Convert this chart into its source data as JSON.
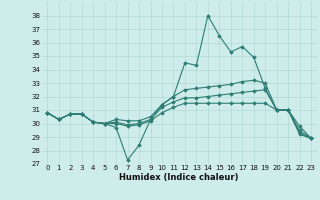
{
  "xlabel": "Humidex (Indice chaleur)",
  "background_color": "#ceecea",
  "grid_color": "#b2d8d4",
  "line_color": "#2d7d74",
  "xlim": [
    -0.5,
    23.5
  ],
  "ylim": [
    27,
    39
  ],
  "yticks": [
    27,
    28,
    29,
    30,
    31,
    32,
    33,
    34,
    35,
    36,
    37,
    38
  ],
  "xticks": [
    0,
    1,
    2,
    3,
    4,
    5,
    6,
    7,
    8,
    9,
    10,
    11,
    12,
    13,
    14,
    15,
    16,
    17,
    18,
    19,
    20,
    21,
    22,
    23
  ],
  "series": [
    [
      30.8,
      30.3,
      30.7,
      30.7,
      30.1,
      30.0,
      29.7,
      27.3,
      28.4,
      30.3,
      31.4,
      32.0,
      34.5,
      34.3,
      38.0,
      36.5,
      35.3,
      35.7,
      34.9,
      32.6,
      31.0,
      31.0,
      29.8,
      28.9
    ],
    [
      30.8,
      30.3,
      30.7,
      30.7,
      30.1,
      30.0,
      30.3,
      30.2,
      30.2,
      30.5,
      31.4,
      32.0,
      32.5,
      32.6,
      32.7,
      32.8,
      32.9,
      33.1,
      33.2,
      33.0,
      31.0,
      31.0,
      29.2,
      28.9
    ],
    [
      30.8,
      30.3,
      30.7,
      30.7,
      30.1,
      30.0,
      30.1,
      29.9,
      30.0,
      30.3,
      31.2,
      31.6,
      31.9,
      31.9,
      32.0,
      32.1,
      32.2,
      32.3,
      32.4,
      32.5,
      31.0,
      31.0,
      29.5,
      28.9
    ],
    [
      30.8,
      30.3,
      30.7,
      30.7,
      30.1,
      30.0,
      30.0,
      29.8,
      29.9,
      30.2,
      30.8,
      31.2,
      31.5,
      31.5,
      31.5,
      31.5,
      31.5,
      31.5,
      31.5,
      31.5,
      31.0,
      31.0,
      29.3,
      28.9
    ]
  ]
}
